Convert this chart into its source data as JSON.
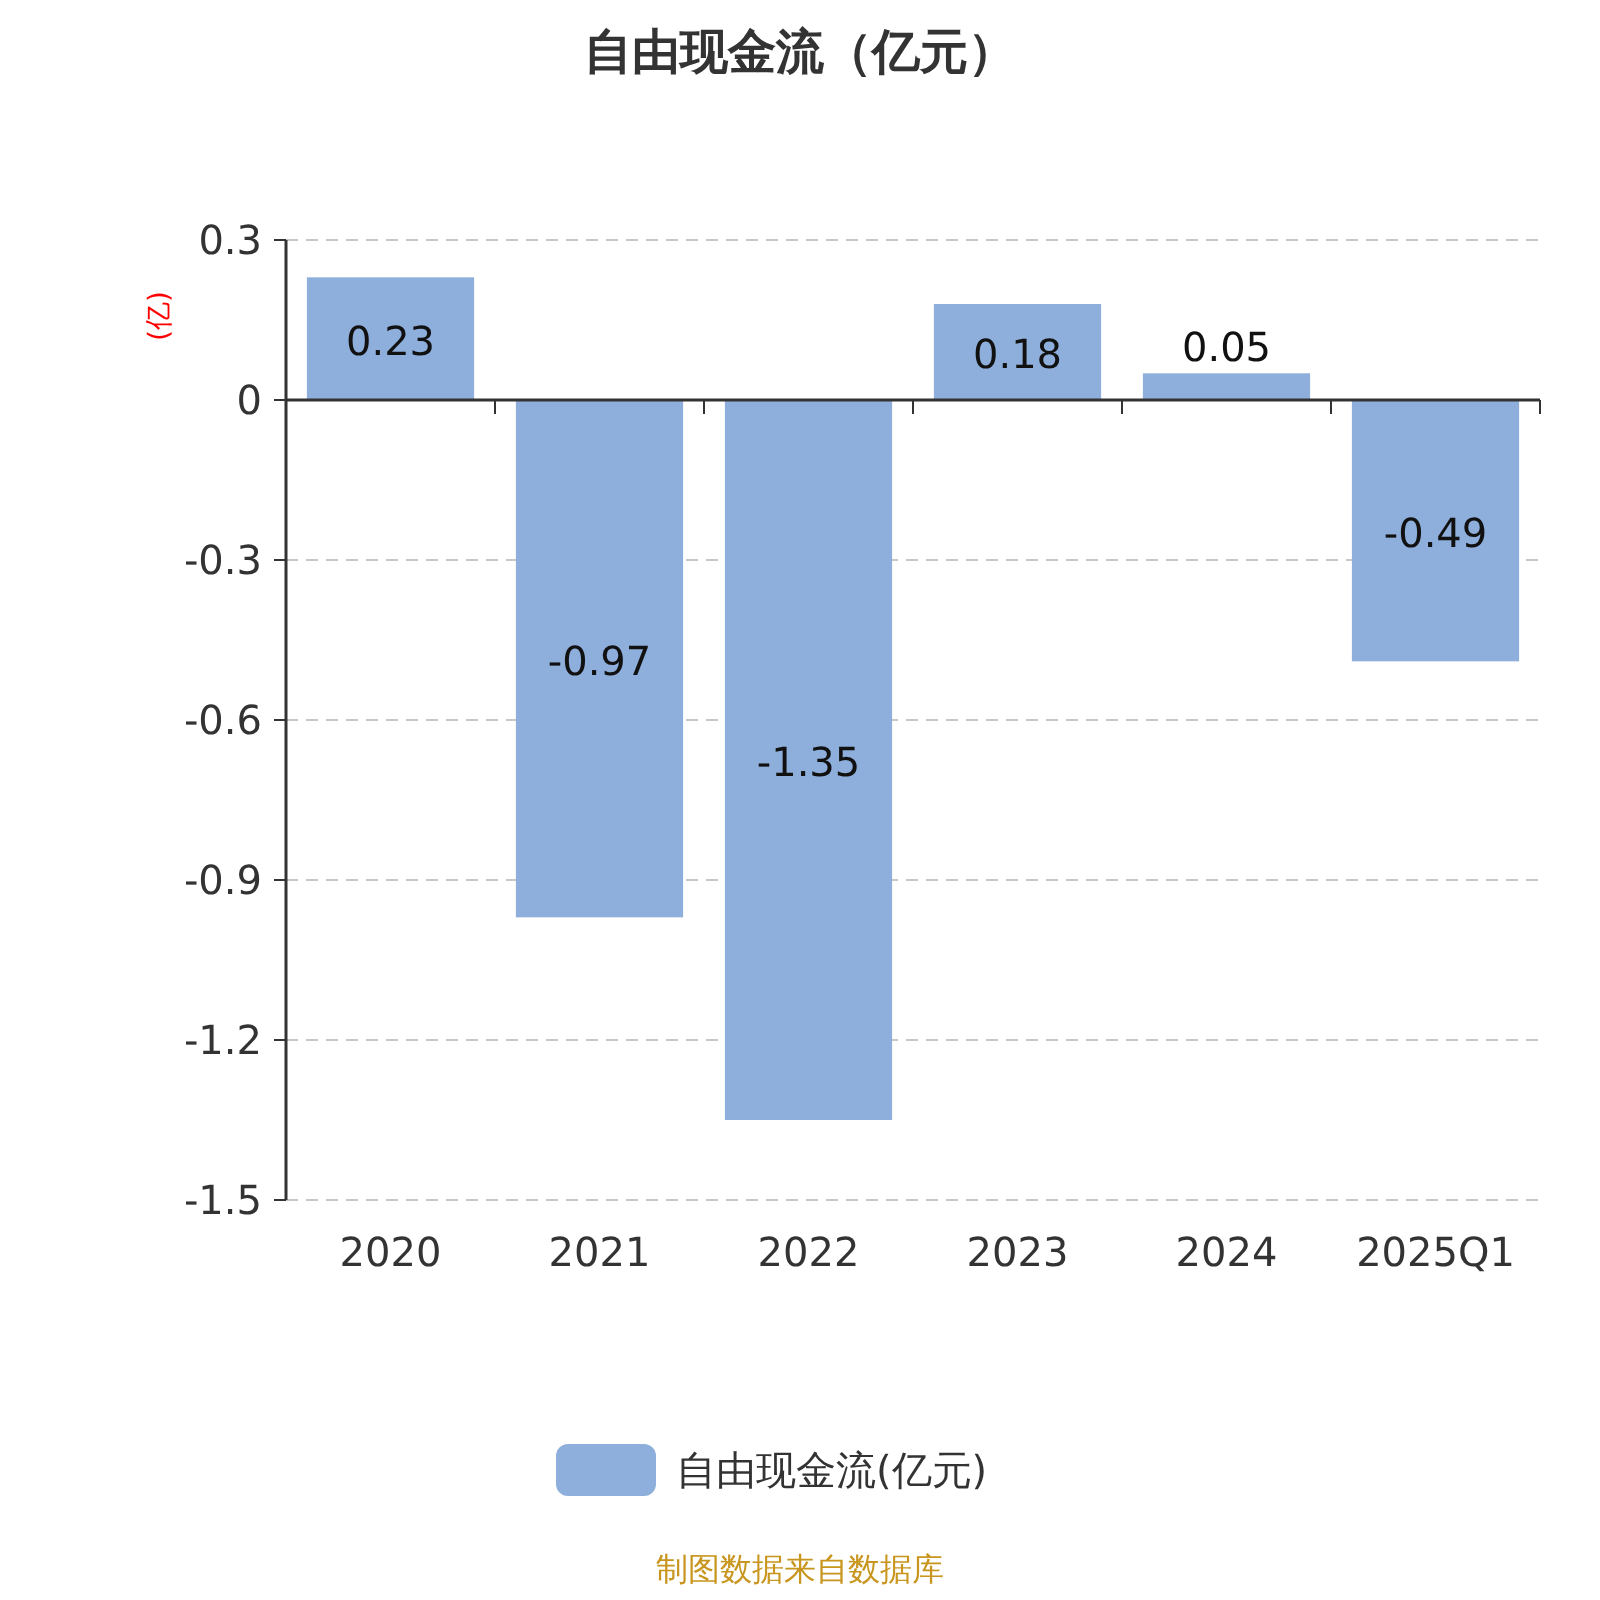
{
  "chart_data": {
    "type": "bar",
    "title": "自由现金流（亿元）",
    "ylabel": "(亿)",
    "categories": [
      "2020",
      "2021",
      "2022",
      "2023",
      "2024",
      "2025Q1"
    ],
    "series": [
      {
        "name": "自由现金流(亿元)",
        "color": "#8eaedb",
        "values": [
          0.23,
          -0.97,
          -1.35,
          0.18,
          0.05,
          -0.49
        ]
      }
    ],
    "ylim": [
      -1.5,
      0.3
    ],
    "yticks": [
      0.3,
      0,
      -0.3,
      -0.6,
      -0.9,
      -1.2,
      -1.5
    ],
    "grid": "y",
    "legend": "bottom",
    "data_labels": true,
    "annotations": [
      "制图数据来自数据库"
    ]
  }
}
